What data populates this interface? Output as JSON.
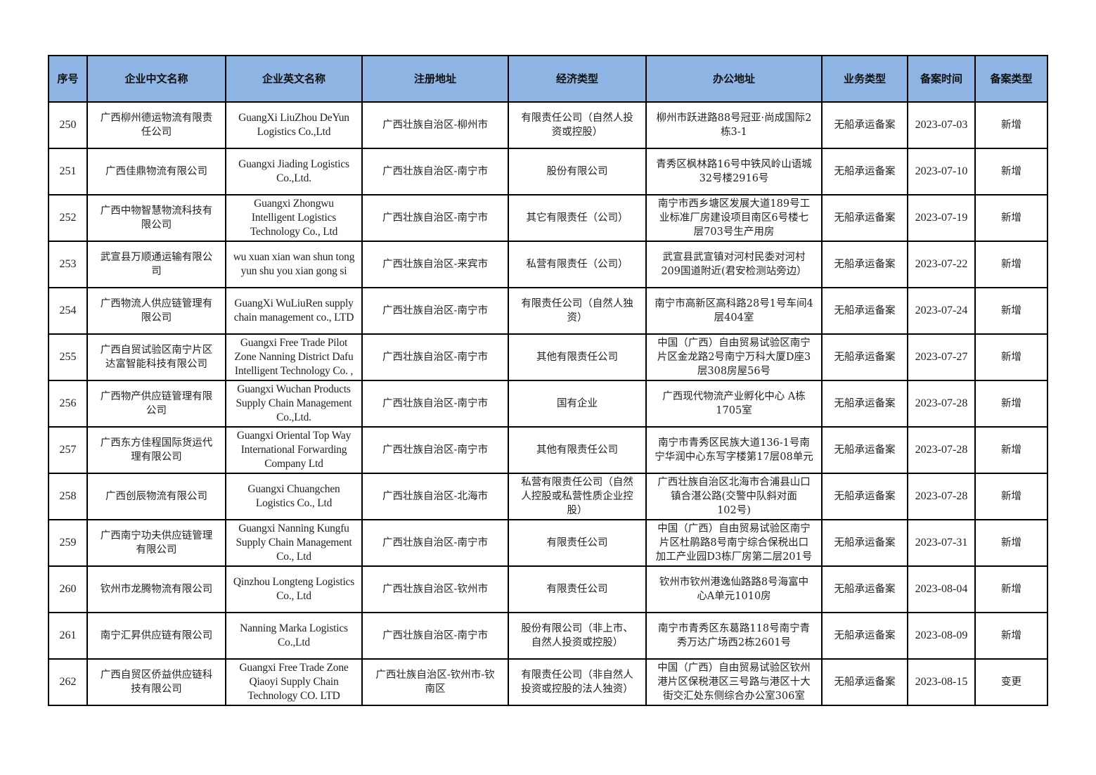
{
  "headers": [
    "序号",
    "企业中文名称",
    "企业英文名称",
    "注册地址",
    "经济类型",
    "办公地址",
    "业务类型",
    "备案时间",
    "备案类型"
  ],
  "rows": [
    {
      "no": "250",
      "cn": "广西柳州德运物流有限责\n任公司",
      "en": "GuangXi LiuZhou DeYun\nLogistics Co.,Ltd",
      "reg": "广西壮族自治区-柳州市",
      "econ": "有限责任公司（自然人投\n资或控股）",
      "office": "柳州市跃进路88号冠亚·尚成国际2\n栋3-1",
      "biz": "无船承运备案",
      "date": "2023-07-03",
      "type": "新增"
    },
    {
      "no": "251",
      "cn": "广西佳鼎物流有限公司",
      "en": "Guangxi Jiading Logistics\nCo.,Ltd.",
      "reg": "广西壮族自治区-南宁市",
      "econ": "股份有限公司",
      "office": "青秀区枫林路16号中铁风岭山语城\n32号楼2916号",
      "biz": "无船承运备案",
      "date": "2023-07-10",
      "type": "新增"
    },
    {
      "no": "252",
      "cn": "广西中物智慧物流科技有\n限公司",
      "en": "Guangxi Zhongwu\nIntelligent Logistics\nTechnology Co., Ltd",
      "reg": "广西壮族自治区-南宁市",
      "econ": "其它有限责任（公司）",
      "office": "南宁市西乡塘区发展大道189号工\n业标准厂房建设项目南区6号楼七\n层703号生产用房",
      "biz": "无船承运备案",
      "date": "2023-07-19",
      "type": "新增"
    },
    {
      "no": "253",
      "cn": "武宣县万顺通运输有限公\n司",
      "en": "wu xuan xian wan shun tong\nyun shu you xian gong  si",
      "reg": "广西壮族自治区-来宾市",
      "econ": "私营有限责任（公司）",
      "office": "武宣县武宣镇对河村民委对河村\n209国道附近(君安检测站旁边）",
      "biz": "无船承运备案",
      "date": "2023-07-22",
      "type": "新增"
    },
    {
      "no": "254",
      "cn": "广西物流人供应链管理有\n限公司",
      "en": "GuangXi WuLiuRen supply\nchain management co., LTD",
      "reg": "广西壮族自治区-南宁市",
      "econ": "有限责任公司（自然人独\n资）",
      "office": "南宁市高新区高科路28号1号车间4\n层404室",
      "biz": "无船承运备案",
      "date": "2023-07-24",
      "type": "新增"
    },
    {
      "no": "255",
      "cn": "广西自贸试验区南宁片区\n达富智能科技有限公司",
      "en": "Guangxi Free Trade Pilot\nZone Nanning District Dafu\nIntelligent Technology Co. ,",
      "reg": "广西壮族自治区-南宁市",
      "econ": "其他有限责任公司",
      "office": "中国（广西）自由贸易试验区南宁\n片区金龙路2号南宁万科大厦D座3\n层308房屋56号",
      "biz": "无船承运备案",
      "date": "2023-07-27",
      "type": "新增"
    },
    {
      "no": "256",
      "cn": "广西物产供应链管理有限\n公司",
      "en": "Guangxi Wuchan Products\nSupply Chain Management\nCo.,Ltd.",
      "reg": "广西壮族自治区-南宁市",
      "econ": "国有企业",
      "office": "广西现代物流产业孵化中心 A栋\n1705室",
      "biz": "无船承运备案",
      "date": "2023-07-28",
      "type": "新增"
    },
    {
      "no": "257",
      "cn": "广西东方佳程国际货运代\n理有限公司",
      "en": "Guangxi Oriental Top Way\nInternational Forwarding\nCompany Ltd",
      "reg": "广西壮族自治区-南宁市",
      "econ": "其他有限责任公司",
      "office": "南宁市青秀区民族大道136-1号南\n宁华润中心东写字楼第17层08单元",
      "biz": "无船承运备案",
      "date": "2023-07-28",
      "type": "新增"
    },
    {
      "no": "258",
      "cn": "广西创辰物流有限公司",
      "en": "Guangxi Chuangchen\nLogistics Co., Ltd",
      "reg": "广西壮族自治区-北海市",
      "econ": "私营有限责任公司（自然\n人控股或私营性质企业控\n股）",
      "office": "广西壮族自治区北海市合浦县山口\n镇合湛公路(交警中队斜对面\n102号)",
      "biz": "无船承运备案",
      "date": "2023-07-28",
      "type": "新增"
    },
    {
      "no": "259",
      "cn": "广西南宁功夫供应链管理\n有限公司",
      "en": "Guangxi Nanning Kungfu\nSupply Chain Management\nCo., Ltd",
      "reg": "广西壮族自治区-南宁市",
      "econ": "有限责任公司",
      "office": "中国（广西）自由贸易试验区南宁\n片区杜鹃路8号南宁综合保税出口\n加工产业园D3栋厂房第二层201号",
      "biz": "无船承运备案",
      "date": "2023-07-31",
      "type": "新增"
    },
    {
      "no": "260",
      "cn": "钦州市龙腾物流有限公司",
      "en": "Qinzhou Longteng Logistics\nCo., Ltd",
      "reg": "广西壮族自治区-钦州市",
      "econ": "有限责任公司",
      "office": "钦州市钦州港逸仙路路8号海富中\n心A单元1010房",
      "biz": "无船承运备案",
      "date": "2023-08-04",
      "type": "新增"
    },
    {
      "no": "261",
      "cn": "南宁汇昇供应链有限公司",
      "en": "Nanning Marka Logistics\nCo.,Ltd",
      "reg": "广西壮族自治区-南宁市",
      "econ": "股份有限公司（非上市、\n自然人投资或控股）",
      "office": "南宁市青秀区东葛路118号南宁青\n秀万达广场西2栋2601号",
      "biz": "无船承运备案",
      "date": "2023-08-09",
      "type": "新增"
    },
    {
      "no": "262",
      "cn": "广西自贸区侨益供应链科\n技有限公司",
      "en": "Guangxi Free Trade Zone\nQiaoyi Supply Chain\nTechnology CO.   LTD",
      "reg": "广西壮族自治区-钦州市-钦\n南区",
      "econ": "有限责任公司（非自然人\n投资或控股的法人独资）",
      "office": "中国（广西）自由贸易试验区钦州\n港片区保税港区三号路与港区十大\n街交汇处东侧综合办公室306室",
      "biz": "无船承运备案",
      "date": "2023-08-15",
      "type": "变更"
    }
  ]
}
